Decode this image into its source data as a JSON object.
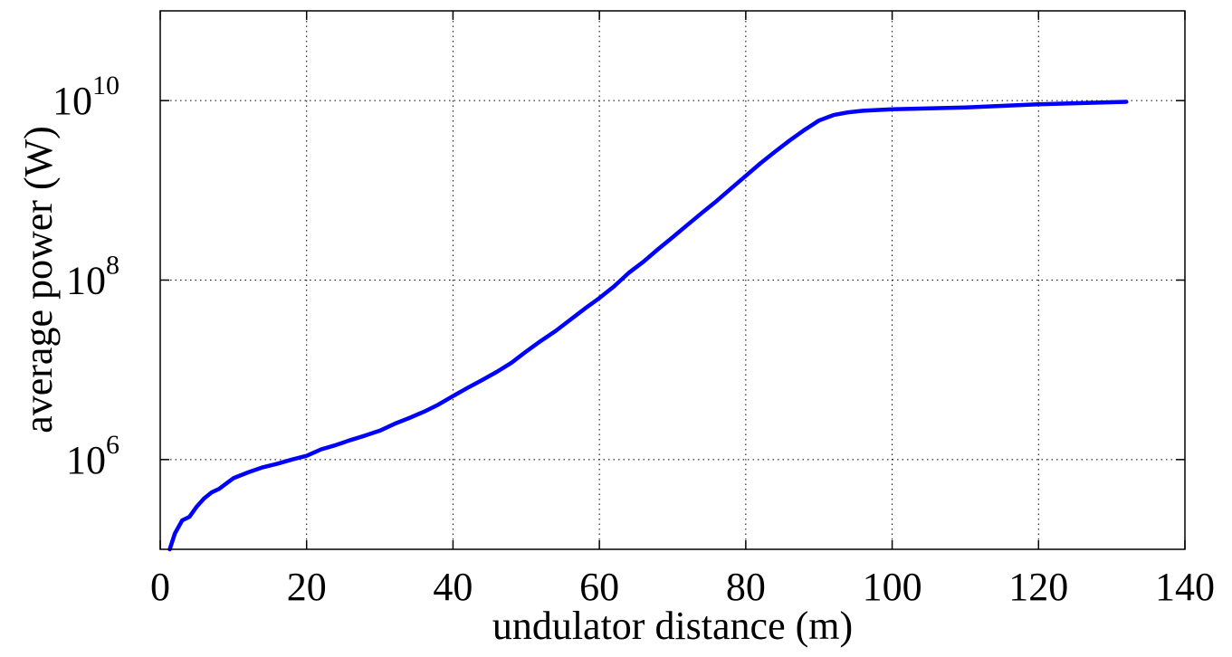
{
  "chart_data": {
    "type": "line",
    "xlabel": "undulator distance (m)",
    "ylabel": "average power (W)",
    "x_scale": "linear",
    "y_scale": "log",
    "xlim": [
      0,
      140
    ],
    "ylim": [
      100000,
      100000000000
    ],
    "grid": true,
    "x_ticks": [
      0,
      20,
      40,
      60,
      80,
      100,
      120,
      140
    ],
    "x_tick_labels": [
      "0",
      "20",
      "40",
      "60",
      "80",
      "100",
      "120",
      "140"
    ],
    "y_ticks": [
      {
        "value": 1000000,
        "base": "10",
        "exp": "6"
      },
      {
        "value": 100000000,
        "base": "10",
        "exp": "8"
      },
      {
        "value": 10000000000,
        "base": "10",
        "exp": "10"
      }
    ],
    "series": [
      {
        "color": "#0000ff",
        "x": [
          1.3,
          2,
          3,
          4,
          5,
          6,
          7,
          8,
          10,
          12,
          14,
          16,
          18,
          20,
          22,
          24,
          26,
          28,
          30,
          32,
          34,
          36,
          38,
          40,
          42,
          44,
          46,
          48,
          50,
          52,
          54,
          56,
          58,
          60,
          62,
          64,
          66,
          68,
          70,
          72,
          74,
          76,
          78,
          80,
          82,
          84,
          86,
          88,
          90,
          92,
          94,
          96,
          100,
          110,
          120,
          132
        ],
        "y": [
          100000,
          150000,
          210000,
          230000,
          300000,
          370000,
          430000,
          470000,
          620000,
          720000,
          820000,
          900000,
          1000000,
          1100000,
          1300000,
          1450000,
          1650000,
          1850000,
          2100000,
          2500000,
          2900000,
          3400000,
          4100000,
          5100000,
          6300000,
          7700000,
          9500000,
          12000000,
          16000000,
          21000000,
          27000000,
          36000000,
          48000000,
          63000000,
          85000000,
          120000000,
          160000000,
          220000000,
          300000000,
          410000000,
          560000000,
          760000000,
          1050000000,
          1450000000,
          2000000000,
          2700000000,
          3600000000,
          4700000000,
          6000000000,
          6900000000,
          7400000000,
          7700000000,
          8000000000,
          8400000000,
          9100000000,
          9700000000
        ]
      }
    ]
  }
}
